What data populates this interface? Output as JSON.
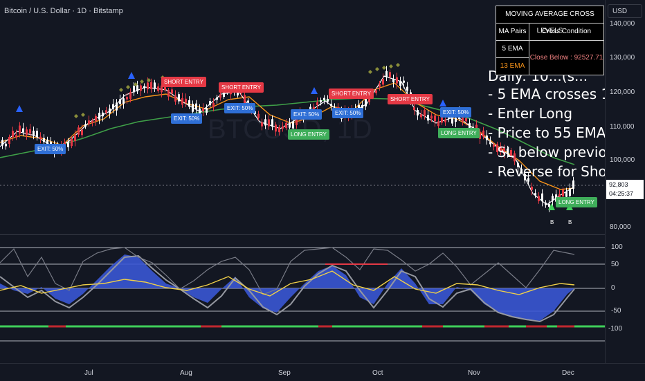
{
  "header": {
    "title": "Bitcoin / U.S. Dollar · 1D · Bitstamp"
  },
  "watermark": "BTCUSD, 1D",
  "currency": "USD",
  "price_scale": {
    "labels": [
      "140,000",
      "130,000",
      "120,000",
      "110,000",
      "100,000",
      "80,000"
    ]
  },
  "last_price": {
    "price": "92,803",
    "countdown": "04:25:37"
  },
  "oscillator_scale": {
    "labels": [
      "100",
      "50",
      "0",
      "-50",
      "-100"
    ]
  },
  "time_axis": {
    "labels": [
      "Jul",
      "Aug",
      "Sep",
      "Oct",
      "Nov",
      "Dec"
    ]
  },
  "ma_table": {
    "title": "MOVING AVERAGE CROSS LEVELS",
    "col1_header": "MA Pairs",
    "col2_header": "Cross Condition",
    "pair_fast": "5 EMA",
    "pair_slow": "13 EMA",
    "condition": "Close Below : 92527.71"
  },
  "overlay_text": [
    "Daily: 10...(s...",
    "- 5 EMA crosses 1",
    "- Enter Long",
    "- Price to 55 EMA",
    "- SL below previo",
    "- Reverse for Sho"
  ],
  "signals": {
    "short_entry": "SHORT ENTRY",
    "long_entry": "LONG ENTRY",
    "exit": "EXIT: 50%",
    "buy_marker": "B"
  },
  "colors": {
    "background": "#131722",
    "ema5": "#ffffff",
    "ema13": "#f7931a",
    "ema55": "#3fa048",
    "bull": "#ffffff",
    "bear": "#e53945",
    "osc_fill": "#3a56d4"
  }
}
